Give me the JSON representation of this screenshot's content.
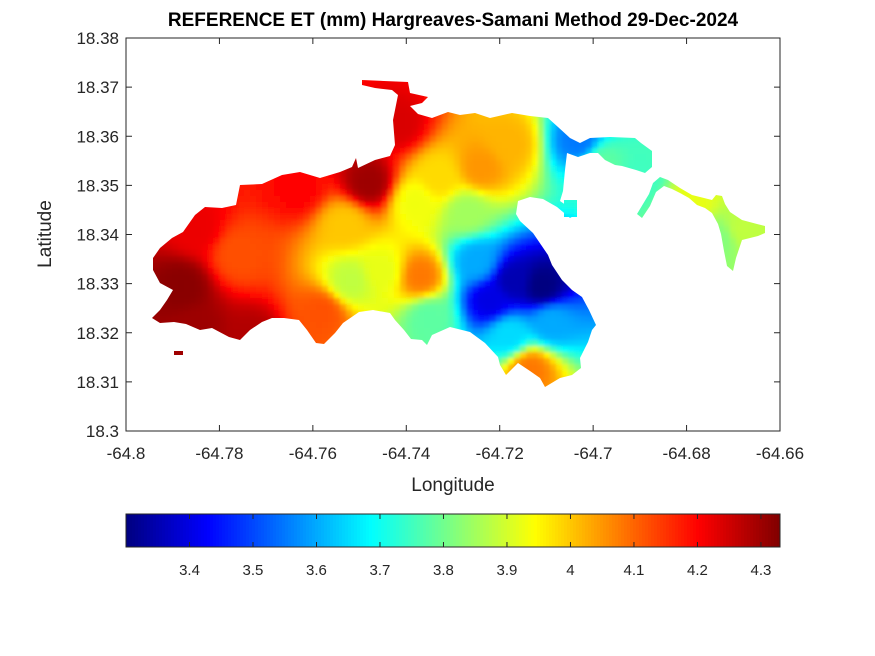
{
  "chart_data": {
    "type": "heatmap",
    "title": "REFERENCE ET (mm) Hargreaves-Samani Method  29-Dec-2024",
    "xlabel": "Longitude",
    "ylabel": "Latitude",
    "xlim": [
      -64.8,
      -64.66
    ],
    "ylim": [
      18.3,
      18.38
    ],
    "x_ticks": [
      "-64.8",
      "-64.78",
      "-64.76",
      "-64.74",
      "-64.72",
      "-64.7",
      "-64.68",
      "-64.66"
    ],
    "y_ticks": [
      "18.3",
      "18.31",
      "18.32",
      "18.33",
      "18.34",
      "18.35",
      "18.36",
      "18.37",
      "18.38"
    ],
    "colormap": "jet",
    "colorbar": {
      "location": "bottom",
      "range": [
        3.3,
        4.33
      ],
      "ticks": [
        "3.4",
        "3.5",
        "3.6",
        "3.7",
        "3.8",
        "3.9",
        "4",
        "4.1",
        "4.2",
        "4.3"
      ]
    },
    "grid": false,
    "hotspots": [
      {
        "lon": -64.788,
        "lat": 18.3295,
        "value": 4.32
      },
      {
        "lon": -64.785,
        "lat": 18.3205,
        "value": 4.3
      },
      {
        "lon": -64.773,
        "lat": 18.3185,
        "value": 4.28
      },
      {
        "lon": -64.748,
        "lat": 18.3505,
        "value": 4.3
      },
      {
        "lon": -64.742,
        "lat": 18.3625,
        "value": 4.24
      },
      {
        "lon": -64.785,
        "lat": 18.341,
        "value": 4.22
      },
      {
        "lon": -64.763,
        "lat": 18.3495,
        "value": 4.2
      },
      {
        "lon": -64.776,
        "lat": 18.336,
        "value": 4.12
      },
      {
        "lon": -64.753,
        "lat": 18.342,
        "value": 4.0
      },
      {
        "lon": -64.758,
        "lat": 18.324,
        "value": 4.12
      },
      {
        "lon": -64.737,
        "lat": 18.3315,
        "value": 4.08
      },
      {
        "lon": -64.745,
        "lat": 18.3325,
        "value": 3.92
      },
      {
        "lon": -64.752,
        "lat": 18.3305,
        "value": 3.88
      },
      {
        "lon": -64.738,
        "lat": 18.3465,
        "value": 3.93
      },
      {
        "lon": -64.733,
        "lat": 18.3515,
        "value": 3.98
      },
      {
        "lon": -64.724,
        "lat": 18.3535,
        "value": 4.05
      },
      {
        "lon": -64.718,
        "lat": 18.3585,
        "value": 4.02
      },
      {
        "lon": -64.727,
        "lat": 18.3445,
        "value": 3.85
      },
      {
        "lon": -64.735,
        "lat": 18.323,
        "value": 3.78
      },
      {
        "lon": -64.725,
        "lat": 18.3345,
        "value": 3.6
      },
      {
        "lon": -64.717,
        "lat": 18.3305,
        "value": 3.35
      },
      {
        "lon": -64.711,
        "lat": 18.3295,
        "value": 3.3
      },
      {
        "lon": -64.722,
        "lat": 18.3265,
        "value": 3.4
      },
      {
        "lon": -64.709,
        "lat": 18.322,
        "value": 3.6
      },
      {
        "lon": -64.718,
        "lat": 18.3195,
        "value": 3.65
      },
      {
        "lon": -64.7135,
        "lat": 18.3125,
        "value": 4.08
      },
      {
        "lon": -64.703,
        "lat": 18.359,
        "value": 3.55
      },
      {
        "lon": -64.698,
        "lat": 18.3545,
        "value": 3.78
      },
      {
        "lon": -64.69,
        "lat": 18.3515,
        "value": 3.75
      },
      {
        "lon": -64.6785,
        "lat": 18.3465,
        "value": 3.92
      },
      {
        "lon": -64.673,
        "lat": 18.339,
        "value": 3.82
      },
      {
        "lon": -64.668,
        "lat": 18.341,
        "value": 3.88
      }
    ]
  }
}
